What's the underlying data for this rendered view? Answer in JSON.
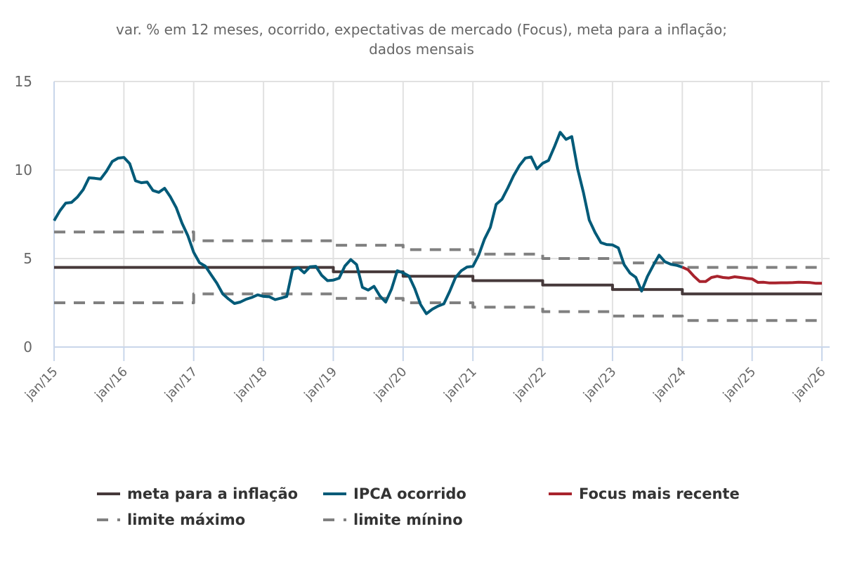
{
  "chart_data": {
    "type": "line",
    "title": [
      "var. % em 12 meses, ocorrido, expectativas de mercado (Focus), meta para a inflação;",
      "dados mensais"
    ],
    "xlabel": "",
    "ylabel": "",
    "ylim": [
      0,
      15
    ],
    "yticks": [
      "0",
      "5",
      "10",
      "15"
    ],
    "ytick_values": [
      0,
      5,
      10,
      15
    ],
    "x_start": "2015-01",
    "x_end": "2026-01",
    "xtick_labels": [
      "jan/15",
      "jan/16",
      "jan/17",
      "jan/18",
      "jan/19",
      "jan/20",
      "jan/21",
      "jan/22",
      "jan/23",
      "jan/24",
      "jan/25",
      "jan/26"
    ],
    "grid": true,
    "legend_position": "bottom",
    "series": [
      {
        "key": "meta",
        "name": "meta para a inflação",
        "color": "#46393A",
        "style": "step",
        "steps": [
          {
            "from": "2015-01",
            "value": 4.5
          },
          {
            "from": "2019-01",
            "value": 4.25
          },
          {
            "from": "2020-01",
            "value": 4.0
          },
          {
            "from": "2021-01",
            "value": 3.75
          },
          {
            "from": "2022-01",
            "value": 3.5
          },
          {
            "from": "2023-01",
            "value": 3.25
          },
          {
            "from": "2024-01",
            "value": 3.0
          }
        ]
      },
      {
        "key": "ipca",
        "name": "IPCA ocorrido",
        "color": "#005A78",
        "style": "solid",
        "start": "2015-01",
        "values": [
          7.14,
          7.7,
          8.13,
          8.17,
          8.47,
          8.89,
          9.56,
          9.53,
          9.49,
          9.93,
          10.48,
          10.67,
          10.71,
          10.36,
          9.39,
          9.28,
          9.32,
          8.84,
          8.74,
          8.97,
          8.48,
          7.87,
          6.99,
          6.29,
          5.35,
          4.76,
          4.57,
          4.08,
          3.6,
          3.0,
          2.71,
          2.46,
          2.54,
          2.7,
          2.8,
          2.95,
          2.86,
          2.84,
          2.68,
          2.76,
          2.86,
          4.39,
          4.48,
          4.19,
          4.53,
          4.56,
          4.05,
          3.75,
          3.78,
          3.89,
          4.58,
          4.94,
          4.66,
          3.37,
          3.22,
          3.43,
          2.89,
          2.54,
          3.27,
          4.31,
          4.19,
          4.01,
          3.3,
          2.4,
          1.88,
          2.13,
          2.31,
          2.44,
          3.14,
          3.92,
          4.31,
          4.52,
          4.56,
          5.2,
          6.1,
          6.76,
          8.06,
          8.35,
          8.99,
          9.68,
          10.25,
          10.67,
          10.74,
          10.06,
          10.38,
          10.54,
          11.3,
          12.13,
          11.73,
          11.89,
          10.07,
          8.73,
          7.17,
          6.47,
          5.9,
          5.79,
          5.77,
          5.6,
          4.65,
          4.18,
          3.94,
          3.16,
          3.99,
          4.61,
          5.19,
          4.82,
          4.68,
          4.62,
          4.51
        ]
      },
      {
        "key": "focus",
        "name": "Focus mais recente",
        "color": "#A8232D",
        "style": "solid",
        "start": "2024-01",
        "values": [
          4.51,
          4.36,
          4.0,
          3.7,
          3.7,
          3.93,
          4.0,
          3.93,
          3.9,
          3.97,
          3.93,
          3.88,
          3.85,
          3.65,
          3.66,
          3.62,
          3.62,
          3.63,
          3.63,
          3.64,
          3.66,
          3.65,
          3.64,
          3.6,
          3.6
        ]
      },
      {
        "key": "max",
        "name": "limite máximo",
        "color": "#808080",
        "style": "dashed-step",
        "steps": [
          {
            "from": "2015-01",
            "value": 6.5
          },
          {
            "from": "2017-01",
            "value": 6.0
          },
          {
            "from": "2019-01",
            "value": 5.75
          },
          {
            "from": "2020-01",
            "value": 5.5
          },
          {
            "from": "2021-01",
            "value": 5.25
          },
          {
            "from": "2022-01",
            "value": 5.0
          },
          {
            "from": "2023-01",
            "value": 4.75
          },
          {
            "from": "2024-01",
            "value": 4.5
          }
        ]
      },
      {
        "key": "min",
        "name": "limite mínino",
        "color": "#808080",
        "style": "dashed-step",
        "steps": [
          {
            "from": "2015-01",
            "value": 2.5
          },
          {
            "from": "2017-01",
            "value": 3.0
          },
          {
            "from": "2019-01",
            "value": 2.75
          },
          {
            "from": "2020-01",
            "value": 2.5
          },
          {
            "from": "2021-01",
            "value": 2.25
          },
          {
            "from": "2022-01",
            "value": 2.0
          },
          {
            "from": "2023-01",
            "value": 1.75
          },
          {
            "from": "2024-01",
            "value": 1.5
          }
        ]
      }
    ]
  },
  "legend": {
    "items": [
      {
        "key": "meta",
        "label": "meta para a inflação",
        "color": "#46393A",
        "swatch": "solid"
      },
      {
        "key": "ipca",
        "label": "IPCA ocorrido",
        "color": "#005A78",
        "swatch": "solid"
      },
      {
        "key": "focus",
        "label": "Focus mais recente",
        "color": "#A8232D",
        "swatch": "solid"
      },
      {
        "key": "max",
        "label": "limite máximo",
        "color": "#808080",
        "swatch": "dash-dot"
      },
      {
        "key": "min",
        "label": "limite mínino",
        "color": "#808080",
        "swatch": "dash-dot"
      }
    ]
  },
  "colors": {
    "grid": "#E1E1E1",
    "axis": "#C9D6EA",
    "text": "#666666",
    "legend_text": "#333333"
  }
}
